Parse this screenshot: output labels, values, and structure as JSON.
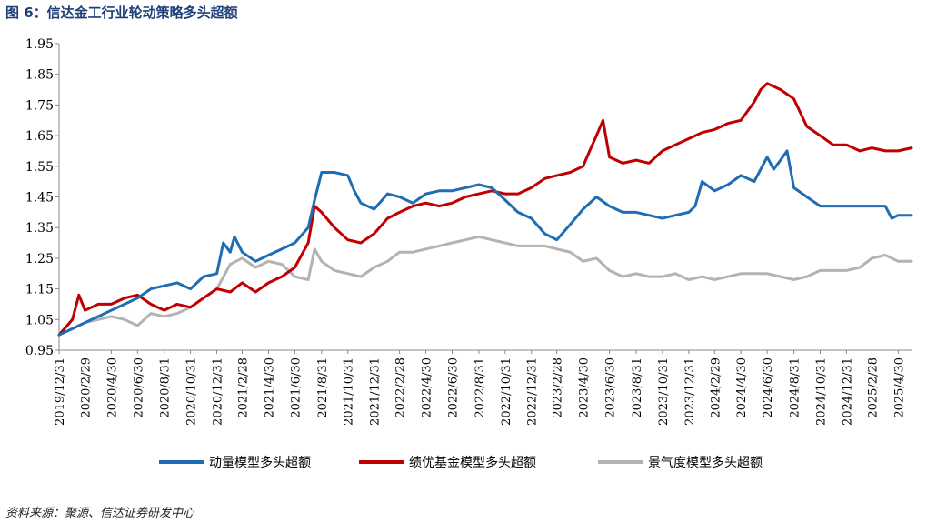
{
  "figure": {
    "title": "图 6：信达金工行业轮动策略多头超额",
    "source": "资料来源：聚源、信达证券研发中心"
  },
  "chart_data": {
    "type": "line",
    "title": "信达金工行业轮动策略多头超额",
    "xlabel": "",
    "ylabel": "",
    "ylim": [
      0.95,
      1.95
    ],
    "yticks": [
      "0.95",
      "1.05",
      "1.15",
      "1.25",
      "1.35",
      "1.45",
      "1.55",
      "1.65",
      "1.75",
      "1.85",
      "1.95"
    ],
    "xlim": [
      "2019-12-31",
      "2025-05-31"
    ],
    "xticks": [
      "2019/12/31",
      "2020/2/29",
      "2020/4/30",
      "2020/6/30",
      "2020/8/31",
      "2020/10/31",
      "2020/12/31",
      "2021/2/28",
      "2021/4/30",
      "2021/6/30",
      "2021/8/31",
      "2021/10/31",
      "2021/12/31",
      "2022/2/28",
      "2022/4/30",
      "2022/6/30",
      "2022/8/31",
      "2022/10/31",
      "2022/12/31",
      "2023/2/28",
      "2023/4/30",
      "2023/6/30",
      "2023/8/31",
      "2023/10/31",
      "2023/12/31",
      "2024/2/29",
      "2024/4/30",
      "2024/6/30",
      "2024/8/31",
      "2024/10/31",
      "2024/12/31",
      "2025/2/28",
      "2025/4/30"
    ],
    "legend_position": "bottom",
    "grid": false,
    "series": [
      {
        "name": "动量模型多头超额",
        "color": "#1f6db5",
        "x": [
          "2019-12-31",
          "2020-01-31",
          "2020-02-29",
          "2020-03-31",
          "2020-04-30",
          "2020-05-31",
          "2020-06-30",
          "2020-07-31",
          "2020-08-31",
          "2020-09-30",
          "2020-10-31",
          "2020-11-30",
          "2020-12-31",
          "2021-01-15",
          "2021-01-31",
          "2021-02-10",
          "2021-02-28",
          "2021-03-31",
          "2021-04-30",
          "2021-05-31",
          "2021-06-30",
          "2021-07-31",
          "2021-08-15",
          "2021-08-31",
          "2021-09-30",
          "2021-10-31",
          "2021-11-15",
          "2021-11-30",
          "2021-12-31",
          "2022-01-31",
          "2022-02-28",
          "2022-03-31",
          "2022-04-30",
          "2022-05-31",
          "2022-06-30",
          "2022-07-31",
          "2022-08-31",
          "2022-09-30",
          "2022-10-31",
          "2022-11-30",
          "2022-12-31",
          "2023-01-31",
          "2023-02-28",
          "2023-03-31",
          "2023-04-30",
          "2023-05-31",
          "2023-06-30",
          "2023-07-31",
          "2023-08-31",
          "2023-09-30",
          "2023-10-31",
          "2023-11-30",
          "2023-12-31",
          "2024-01-15",
          "2024-01-31",
          "2024-02-29",
          "2024-03-31",
          "2024-04-30",
          "2024-05-31",
          "2024-06-30",
          "2024-07-15",
          "2024-07-31",
          "2024-08-15",
          "2024-08-31",
          "2024-09-30",
          "2024-10-31",
          "2024-11-30",
          "2024-12-31",
          "2025-01-31",
          "2025-02-28",
          "2025-03-31",
          "2025-04-15",
          "2025-04-30",
          "2025-05-31"
        ],
        "values": [
          1.0,
          1.02,
          1.04,
          1.06,
          1.08,
          1.1,
          1.12,
          1.15,
          1.16,
          1.17,
          1.15,
          1.19,
          1.2,
          1.3,
          1.27,
          1.32,
          1.27,
          1.24,
          1.26,
          1.28,
          1.3,
          1.35,
          1.44,
          1.53,
          1.53,
          1.52,
          1.47,
          1.43,
          1.41,
          1.46,
          1.45,
          1.43,
          1.46,
          1.47,
          1.47,
          1.48,
          1.49,
          1.48,
          1.44,
          1.4,
          1.38,
          1.33,
          1.31,
          1.36,
          1.41,
          1.45,
          1.42,
          1.4,
          1.4,
          1.39,
          1.38,
          1.39,
          1.4,
          1.42,
          1.5,
          1.47,
          1.49,
          1.52,
          1.5,
          1.58,
          1.54,
          1.57,
          1.6,
          1.48,
          1.45,
          1.42,
          1.42,
          1.42,
          1.42,
          1.42,
          1.42,
          1.38,
          1.39,
          1.39
        ]
      },
      {
        "name": "绩优基金模型多头超额",
        "color": "#c00000",
        "x": [
          "2019-12-31",
          "2020-01-31",
          "2020-02-15",
          "2020-02-29",
          "2020-03-31",
          "2020-04-30",
          "2020-05-31",
          "2020-06-30",
          "2020-07-31",
          "2020-08-31",
          "2020-09-30",
          "2020-10-31",
          "2020-11-30",
          "2020-12-31",
          "2021-01-31",
          "2021-02-28",
          "2021-03-31",
          "2021-04-30",
          "2021-05-31",
          "2021-06-30",
          "2021-07-31",
          "2021-08-15",
          "2021-08-31",
          "2021-09-30",
          "2021-10-31",
          "2021-11-30",
          "2021-12-31",
          "2022-01-31",
          "2022-02-28",
          "2022-03-31",
          "2022-04-30",
          "2022-05-31",
          "2022-06-30",
          "2022-07-31",
          "2022-08-31",
          "2022-09-30",
          "2022-10-31",
          "2022-11-30",
          "2022-12-31",
          "2023-01-31",
          "2023-02-28",
          "2023-03-31",
          "2023-04-30",
          "2023-05-15",
          "2023-05-31",
          "2023-06-15",
          "2023-06-30",
          "2023-07-31",
          "2023-08-31",
          "2023-09-30",
          "2023-10-31",
          "2023-11-30",
          "2023-12-31",
          "2024-01-31",
          "2024-02-29",
          "2024-03-31",
          "2024-04-30",
          "2024-05-31",
          "2024-06-15",
          "2024-06-30",
          "2024-07-31",
          "2024-08-31",
          "2024-09-30",
          "2024-10-31",
          "2024-11-30",
          "2024-12-31",
          "2025-01-31",
          "2025-02-28",
          "2025-03-31",
          "2025-04-30",
          "2025-05-31"
        ],
        "values": [
          1.0,
          1.05,
          1.13,
          1.08,
          1.1,
          1.1,
          1.12,
          1.13,
          1.1,
          1.08,
          1.1,
          1.09,
          1.12,
          1.15,
          1.14,
          1.17,
          1.14,
          1.17,
          1.19,
          1.22,
          1.3,
          1.42,
          1.4,
          1.35,
          1.31,
          1.3,
          1.33,
          1.38,
          1.4,
          1.42,
          1.43,
          1.42,
          1.43,
          1.45,
          1.46,
          1.47,
          1.46,
          1.46,
          1.48,
          1.51,
          1.52,
          1.53,
          1.55,
          1.6,
          1.65,
          1.7,
          1.58,
          1.56,
          1.57,
          1.56,
          1.6,
          1.62,
          1.64,
          1.66,
          1.67,
          1.69,
          1.7,
          1.76,
          1.8,
          1.82,
          1.8,
          1.77,
          1.68,
          1.65,
          1.62,
          1.62,
          1.6,
          1.61,
          1.6,
          1.6,
          1.61
        ]
      },
      {
        "name": "景气度模型多头超额",
        "color": "#b3b3b3",
        "x": [
          "2019-12-31",
          "2020-01-31",
          "2020-02-29",
          "2020-03-31",
          "2020-04-30",
          "2020-05-31",
          "2020-06-30",
          "2020-07-31",
          "2020-08-31",
          "2020-09-30",
          "2020-10-31",
          "2020-11-30",
          "2020-12-31",
          "2021-01-31",
          "2021-02-28",
          "2021-03-31",
          "2021-04-30",
          "2021-05-31",
          "2021-06-30",
          "2021-07-31",
          "2021-08-15",
          "2021-08-31",
          "2021-09-30",
          "2021-10-31",
          "2021-11-30",
          "2021-12-31",
          "2022-01-31",
          "2022-02-28",
          "2022-03-31",
          "2022-04-30",
          "2022-05-31",
          "2022-06-30",
          "2022-07-31",
          "2022-08-31",
          "2022-09-30",
          "2022-10-31",
          "2022-11-30",
          "2022-12-31",
          "2023-01-31",
          "2023-02-28",
          "2023-03-31",
          "2023-04-30",
          "2023-05-31",
          "2023-06-30",
          "2023-07-31",
          "2023-08-31",
          "2023-09-30",
          "2023-10-31",
          "2023-11-30",
          "2023-12-31",
          "2024-01-31",
          "2024-02-29",
          "2024-03-31",
          "2024-04-30",
          "2024-05-31",
          "2024-06-30",
          "2024-07-31",
          "2024-08-31",
          "2024-09-30",
          "2024-10-31",
          "2024-11-30",
          "2024-12-31",
          "2025-01-31",
          "2025-02-28",
          "2025-03-31",
          "2025-04-30",
          "2025-05-31"
        ],
        "values": [
          1.0,
          1.02,
          1.04,
          1.05,
          1.06,
          1.05,
          1.03,
          1.07,
          1.06,
          1.07,
          1.09,
          1.12,
          1.15,
          1.23,
          1.25,
          1.22,
          1.24,
          1.23,
          1.19,
          1.18,
          1.28,
          1.24,
          1.21,
          1.2,
          1.19,
          1.22,
          1.24,
          1.27,
          1.27,
          1.28,
          1.29,
          1.3,
          1.31,
          1.32,
          1.31,
          1.3,
          1.29,
          1.29,
          1.29,
          1.28,
          1.27,
          1.24,
          1.25,
          1.21,
          1.19,
          1.2,
          1.19,
          1.19,
          1.2,
          1.18,
          1.19,
          1.18,
          1.19,
          1.2,
          1.2,
          1.2,
          1.19,
          1.18,
          1.19,
          1.21,
          1.21,
          1.21,
          1.22,
          1.25,
          1.26,
          1.24,
          1.24
        ]
      }
    ]
  }
}
